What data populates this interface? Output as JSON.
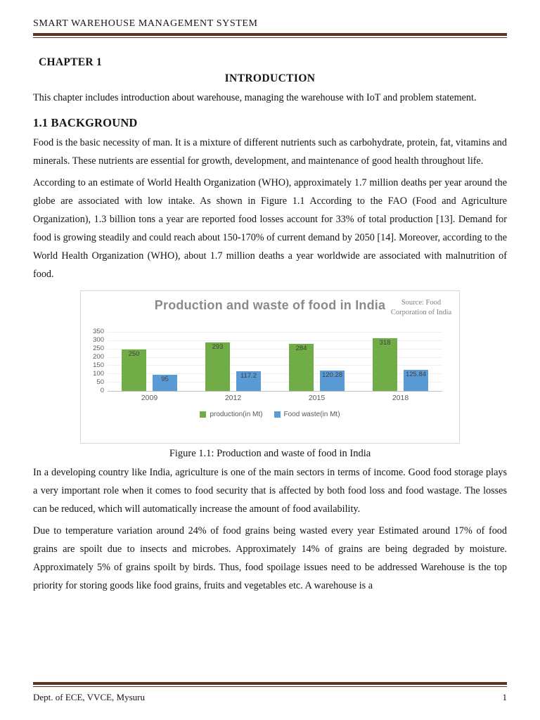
{
  "page": {
    "header": {
      "title": "SMART WAREHOUSE MANAGEMENT SYSTEM"
    },
    "footer": {
      "left": "Dept. of ECE, VVCE, Mysuru",
      "page_number": "1"
    },
    "colors": {
      "rule": "#5a3420"
    }
  },
  "content": {
    "chapter_label": "CHAPTER 1",
    "chapter_title": "INTRODUCTION",
    "intro_paragraph": "This chapter includes introduction about warehouse, managing the warehouse with IoT and problem statement.",
    "section_heading": "1.1 BACKGROUND",
    "paragraphs_top": [
      "Food is the basic necessity of man. It is a mixture of different nutrients such as carbohydrate, protein, fat, vitamins and minerals. These nutrients are essential for growth, development, and maintenance of good health throughout life.",
      "According to an estimate of World Health Organization (WHO), approximately 1.7 million deaths per year around the globe are associated with low intake.  As shown in Figure 1.1 According to the FAO (Food and Agriculture Organization), 1.3 billion tons a year are reported food losses account for 33% of total production [13]. Demand for food is growing steadily and could reach about 150-170% of current demand by 2050 [14]. Moreover, according to the World Health Organization (WHO), about 1.7 million deaths a year worldwide are associated with malnutrition of food."
    ],
    "figure_caption": "Figure 1.1: Production and waste of food in India",
    "paragraphs_bottom": [
      "In a developing country like India, agriculture is one of the main sectors in terms of income. Good food storage plays a very important role when it comes to food security that is affected by both food loss and food wastage. The losses can be reduced, which will automatically increase the amount of food availability.",
      "Due to temperature variation around 24% of food grains being wasted every year Estimated around 17% of food grains are spoilt due to insects and microbes. Approximately 14% of grains are being degraded by moisture. Approximately 5% of grains spoilt by birds. Thus, food spoilage issues need to be addressed Warehouse is the top priority for storing goods like food grains, fruits and vegetables etc. A warehouse is a"
    ]
  },
  "chart_data": {
    "type": "bar",
    "title": "Production and waste of food in India",
    "source_note": "Source: Food Corporation of India",
    "categories": [
      "2009",
      "2012",
      "2015",
      "2018"
    ],
    "series": [
      {
        "name": "production(in Mt)",
        "color": "#70ad47",
        "values": [
          250,
          293,
          284,
          318
        ]
      },
      {
        "name": "Food waste(in Mt)",
        "color": "#5b9bd5",
        "values": [
          95,
          117.2,
          120.28,
          125.84
        ]
      }
    ],
    "xlabel": "",
    "ylabel": "",
    "ylim": [
      0,
      350
    ],
    "ytick_step": 50,
    "grid": true,
    "legend_position": "bottom"
  }
}
